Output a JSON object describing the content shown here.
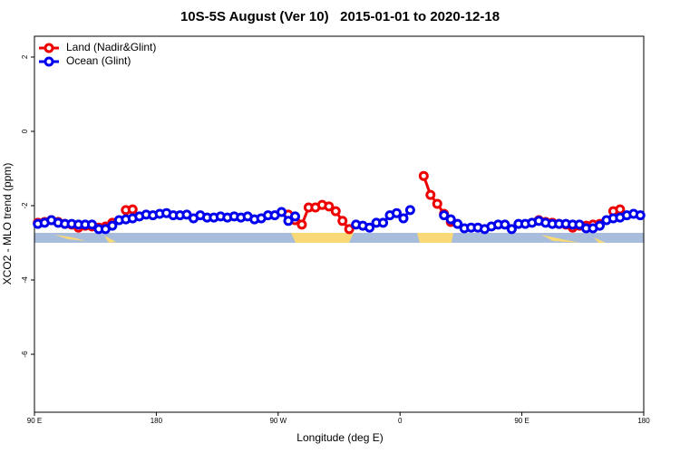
{
  "chart_data": {
    "type": "line",
    "title": "10S-5S August (Ver 10)   2015-01-01 to 2020-12-18",
    "x_label": "Longitude (deg E)",
    "y_label": "XCO2 - MLO trend (ppm)",
    "xlim": [
      90,
      540
    ],
    "ylim": [
      -7.56,
      2.56
    ],
    "xticks": [
      {
        "value": 90,
        "label": "90 E"
      },
      {
        "value": 180,
        "label": "180"
      },
      {
        "value": 270,
        "label": "90 W"
      },
      {
        "value": 360,
        "label": "0"
      },
      {
        "value": 450,
        "label": "90 E"
      },
      {
        "value": 540,
        "label": "180"
      }
    ],
    "yticks": [
      2,
      0,
      -2,
      -4,
      -6
    ],
    "legend": "top-left",
    "x": [
      92.5,
      97.5,
      102.5,
      107.5,
      112.5,
      117.5,
      122.5,
      127.5,
      132.5,
      137.5,
      142.5,
      147.5,
      152.5,
      157.5,
      162.5,
      167.5,
      172.5,
      177.5,
      182.5,
      187.5,
      192.5,
      197.5,
      202.5,
      207.5,
      212.5,
      217.5,
      222.5,
      227.5,
      232.5,
      237.5,
      242.5,
      247.5,
      252.5,
      257.5,
      262.5,
      267.5,
      272.5,
      277.5,
      282.5,
      287.5,
      292.5,
      297.5,
      302.5,
      307.5,
      312.5,
      317.5,
      322.5,
      327.5,
      332.5,
      337.5,
      342.5,
      347.5,
      352.5,
      357.5,
      362.5,
      367.5,
      372.5,
      377.5,
      382.5,
      387.5,
      392.5,
      397.5,
      402.5,
      407.5,
      412.5,
      417.5,
      422.5,
      427.5,
      432.5,
      437.5,
      442.5,
      447.5,
      452.5,
      457.5,
      462.5,
      467.5,
      472.5,
      477.5,
      482.5,
      487.5,
      492.5,
      497.5,
      502.5,
      507.5,
      512.5,
      517.5,
      522.5,
      527.5,
      532.5,
      537.5
    ],
    "series": [
      {
        "name": "Land (Nadir&Glint)",
        "color": "#ee0000",
        "values": [
          -2.46,
          -2.44,
          -2.39,
          -2.44,
          -2.49,
          -2.51,
          -2.59,
          -2.54,
          -2.56,
          -2.59,
          -2.56,
          -2.46,
          null,
          -2.12,
          -2.1,
          null,
          null,
          null,
          null,
          null,
          null,
          null,
          null,
          null,
          null,
          null,
          null,
          null,
          null,
          null,
          null,
          null,
          null,
          null,
          null,
          null,
          null,
          -2.24,
          -2.39,
          -2.51,
          -2.05,
          -2.05,
          -1.98,
          -2.02,
          -2.15,
          -2.41,
          -2.63,
          null,
          null,
          null,
          null,
          null,
          null,
          null,
          null,
          null,
          null,
          -1.2,
          -1.71,
          -1.95,
          -2.22,
          -2.44,
          null,
          null,
          null,
          null,
          null,
          null,
          null,
          null,
          null,
          null,
          null,
          null,
          -2.39,
          -2.44,
          -2.46,
          -2.49,
          -2.51,
          -2.59,
          -2.54,
          -2.54,
          -2.51,
          -2.49,
          null,
          -2.15,
          -2.1,
          null,
          null,
          null
        ]
      },
      {
        "name": "Ocean (Glint)",
        "color": "#0000ee",
        "values": [
          -2.49,
          -2.46,
          -2.39,
          -2.46,
          -2.49,
          -2.49,
          -2.51,
          -2.51,
          -2.51,
          -2.63,
          -2.63,
          -2.54,
          -2.39,
          -2.37,
          -2.34,
          -2.29,
          -2.24,
          -2.26,
          -2.22,
          -2.2,
          -2.26,
          -2.26,
          -2.24,
          -2.34,
          -2.26,
          -2.32,
          -2.32,
          -2.29,
          -2.32,
          -2.29,
          -2.32,
          -2.29,
          -2.37,
          -2.34,
          -2.26,
          -2.26,
          -2.17,
          -2.41,
          -2.29,
          null,
          null,
          null,
          null,
          null,
          null,
          null,
          null,
          -2.51,
          -2.54,
          -2.59,
          -2.46,
          -2.46,
          -2.26,
          -2.2,
          -2.34,
          -2.12,
          null,
          null,
          null,
          null,
          -2.26,
          -2.37,
          -2.49,
          -2.61,
          -2.59,
          -2.59,
          -2.63,
          -2.56,
          -2.51,
          -2.51,
          -2.63,
          -2.49,
          -2.49,
          -2.46,
          -2.41,
          -2.46,
          -2.49,
          -2.49,
          -2.49,
          -2.51,
          -2.51,
          -2.61,
          -2.61,
          -2.54,
          -2.39,
          -2.34,
          -2.32,
          -2.26,
          -2.22,
          -2.26
        ]
      }
    ]
  }
}
